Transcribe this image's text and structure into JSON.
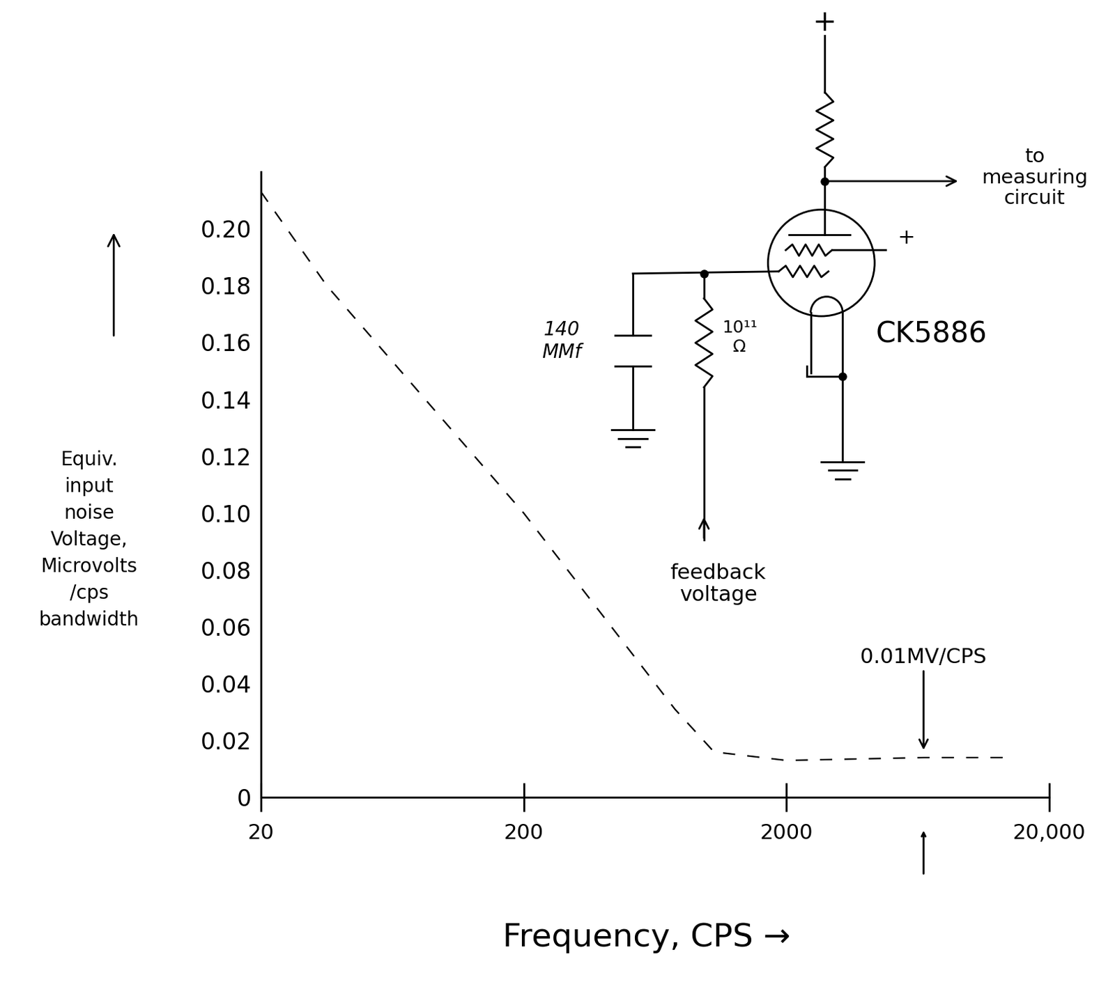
{
  "chart_data": {
    "type": "line",
    "x": [
      20,
      35.6,
      200,
      753,
      1060,
      2000,
      6650,
      14100
    ],
    "values": [
      0.213,
      0.18,
      0.1,
      0.031,
      0.016,
      0.013,
      0.014,
      0.014
    ],
    "color": "black",
    "line_style": "dashed",
    "log": "x",
    "grid": false,
    "xlim": [
      20,
      20000
    ],
    "ylim": [
      0,
      0.22
    ],
    "xticks": [
      20,
      200,
      2000,
      {
        "value": 20000,
        "label": "20,000"
      }
    ],
    "yticks": [
      0,
      0.02,
      0.04,
      0.06,
      0.08,
      {
        "value": 0.1,
        "label": "0.10"
      },
      0.12,
      0.14,
      0.16,
      0.18,
      {
        "value": 0.2,
        "label": "0.20"
      }
    ],
    "x_label": "Frequency, CPS →",
    "y_label": "Equiv.\ninput\nnoise\nVoltage,\nMicrovolts\n/cps\nbandwidth",
    "annotations": [
      {
        "text": "0.01MV/CPS",
        "x": 6650,
        "y": 0.014
      }
    ]
  },
  "circuit": {
    "supply": "+",
    "screen_supply": "+",
    "output": "to\nmeasuring\ncircuit",
    "capacitor": "140\nMMf",
    "resistor": "10¹¹\nΩ",
    "input": "feedback\nvoltage",
    "tube": "CK5886"
  }
}
